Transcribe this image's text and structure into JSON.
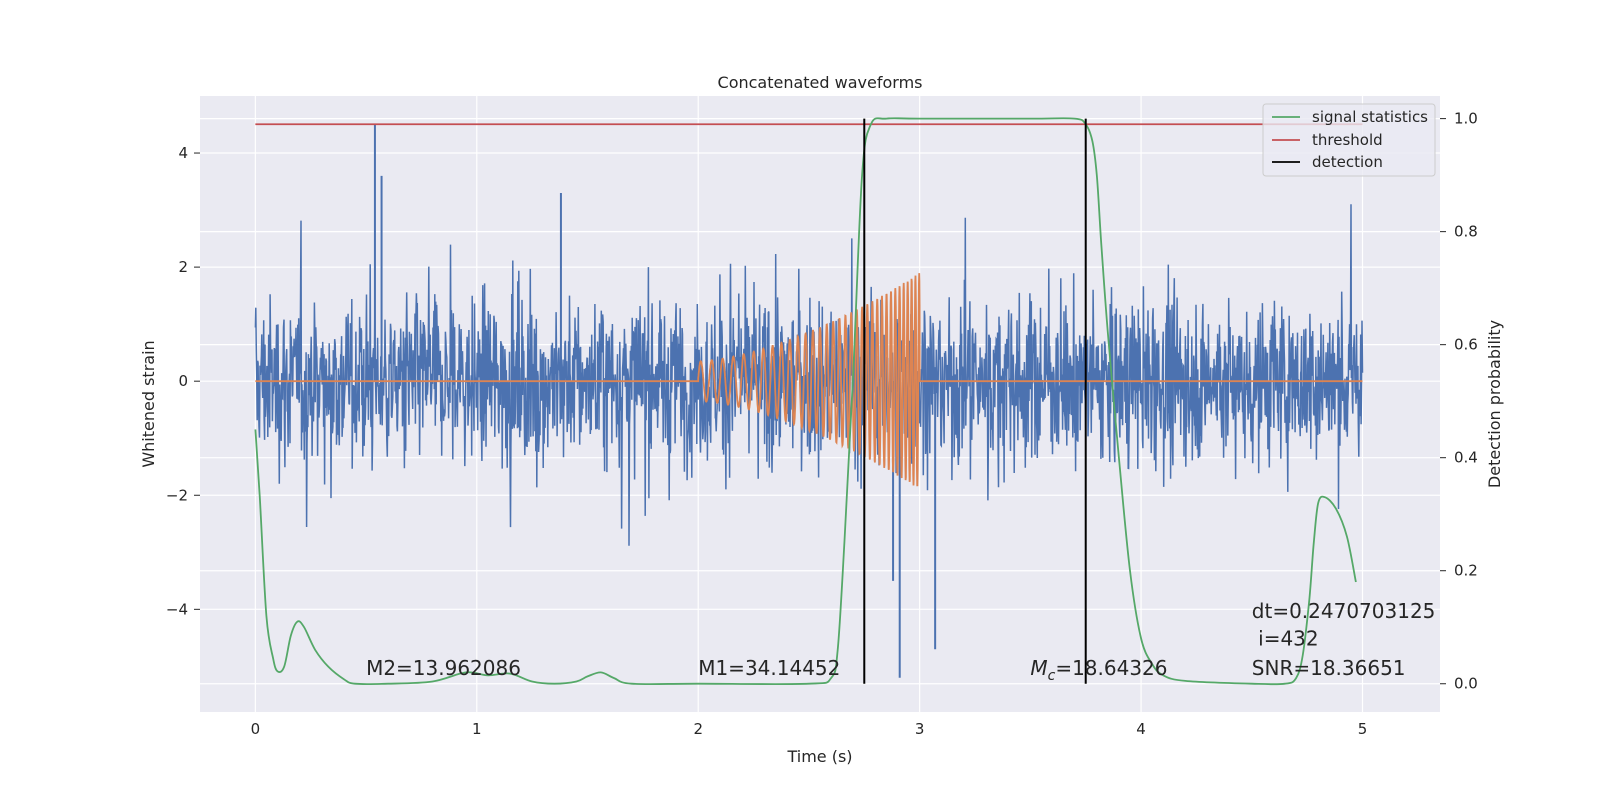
{
  "chart_data": {
    "type": "line",
    "title": "Concatenated waveforms",
    "xlabel": "Time (s)",
    "ylabel_left": "Whitened strain",
    "ylabel_right": "Detection probability",
    "xlim": [
      -0.25,
      5.35
    ],
    "ylim_left": [
      -5.8,
      5.0
    ],
    "ylim_right": [
      -0.05,
      1.04
    ],
    "x_ticks": [
      0,
      1,
      2,
      3,
      4,
      5
    ],
    "x_tick_labels": [
      "0",
      "1",
      "2",
      "3",
      "4",
      "5"
    ],
    "y_ticks_left": [
      -4,
      -2,
      0,
      2,
      4
    ],
    "y_tick_labels_left": [
      "−4",
      "−2",
      "0",
      "2",
      "4"
    ],
    "y_ticks_right": [
      0.0,
      0.2,
      0.4,
      0.6,
      0.8,
      1.0
    ],
    "y_tick_labels_right": [
      "0.0",
      "0.2",
      "0.4",
      "0.6",
      "0.8",
      "1.0"
    ],
    "grid": true,
    "legend_position": "top-right",
    "legend": [
      {
        "label": "signal statistics",
        "color": "#55a868"
      },
      {
        "label": "threshold",
        "color": "#c44e52"
      },
      {
        "label": "detection",
        "color": "#000000"
      }
    ],
    "colors": {
      "background": "#eaeaf2",
      "noise": "#4c72b0",
      "chirp": "#dd8452",
      "signal_statistics": "#55a868",
      "threshold": "#c44e52",
      "detection": "#000000",
      "grid": "#ffffff"
    },
    "series": [
      {
        "name": "",
        "axis": "left",
        "kind": "whitened noise strain",
        "x_range": [
          0,
          5
        ],
        "amplitude_typical": 1.0,
        "peak_max": 4.5,
        "peak_min": -5.2
      },
      {
        "name": "",
        "axis": "left",
        "kind": "injected chirp waveform",
        "x_range": [
          2,
          3
        ],
        "amplitude_start": 0.35,
        "amplitude_end": 1.9
      },
      {
        "name": "signal statistics",
        "axis": "right",
        "x": [
          0,
          0.02,
          0.05,
          0.08,
          0.1,
          0.13,
          0.16,
          0.19,
          0.22,
          0.27,
          0.33,
          0.4,
          0.45,
          0.6,
          0.8,
          0.95,
          1.05,
          1.15,
          1.25,
          1.35,
          1.45,
          1.5,
          1.56,
          1.62,
          1.7,
          2.0,
          2.5,
          2.6,
          2.63,
          2.66,
          2.7,
          2.74,
          2.78,
          2.85,
          3.0,
          3.5,
          3.7,
          3.75,
          3.78,
          3.8,
          3.82,
          3.85,
          3.9,
          3.95,
          4.0,
          4.05,
          4.1,
          4.2,
          4.5,
          4.65,
          4.7,
          4.73,
          4.76,
          4.78,
          4.8,
          4.83,
          4.88,
          4.93,
          4.97
        ],
        "y": [
          0.45,
          0.33,
          0.12,
          0.045,
          0.022,
          0.03,
          0.085,
          0.11,
          0.1,
          0.06,
          0.03,
          0.008,
          0.0,
          0.0,
          0.004,
          0.02,
          0.015,
          0.018,
          0.004,
          0.0,
          0.004,
          0.013,
          0.02,
          0.01,
          0.0,
          0.0,
          0.0,
          0.01,
          0.06,
          0.25,
          0.55,
          0.9,
          0.99,
          1.0,
          1.0,
          1.0,
          1.0,
          0.99,
          0.96,
          0.9,
          0.78,
          0.62,
          0.4,
          0.2,
          0.08,
          0.035,
          0.015,
          0.005,
          0.0,
          0.0,
          0.01,
          0.05,
          0.15,
          0.25,
          0.32,
          0.33,
          0.31,
          0.26,
          0.18
        ]
      },
      {
        "name": "threshold",
        "axis": "right",
        "x": [
          0,
          5
        ],
        "y": [
          0.99,
          0.99
        ]
      },
      {
        "name": "detection",
        "axis": "right",
        "x_positions": [
          2.75,
          3.75
        ],
        "y_range": [
          0.0,
          1.0
        ]
      }
    ],
    "annotations": [
      {
        "text": "M2=13.962086",
        "x": 0.5,
        "y": -5.15
      },
      {
        "text": "M1=34.14452",
        "x": 2.0,
        "y": -5.15
      },
      {
        "text_main": "M",
        "text_sub": "c",
        "text_rest": "=18.64326",
        "x": 3.5,
        "y": -5.15
      },
      {
        "text": "SNR=18.36651",
        "x": 4.5,
        "y": -5.15
      },
      {
        "text": "dt=0.2470703125",
        "x": 4.5,
        "y": -4.15
      },
      {
        "text": " i=432",
        "x": 4.5,
        "y": -4.63
      }
    ]
  }
}
